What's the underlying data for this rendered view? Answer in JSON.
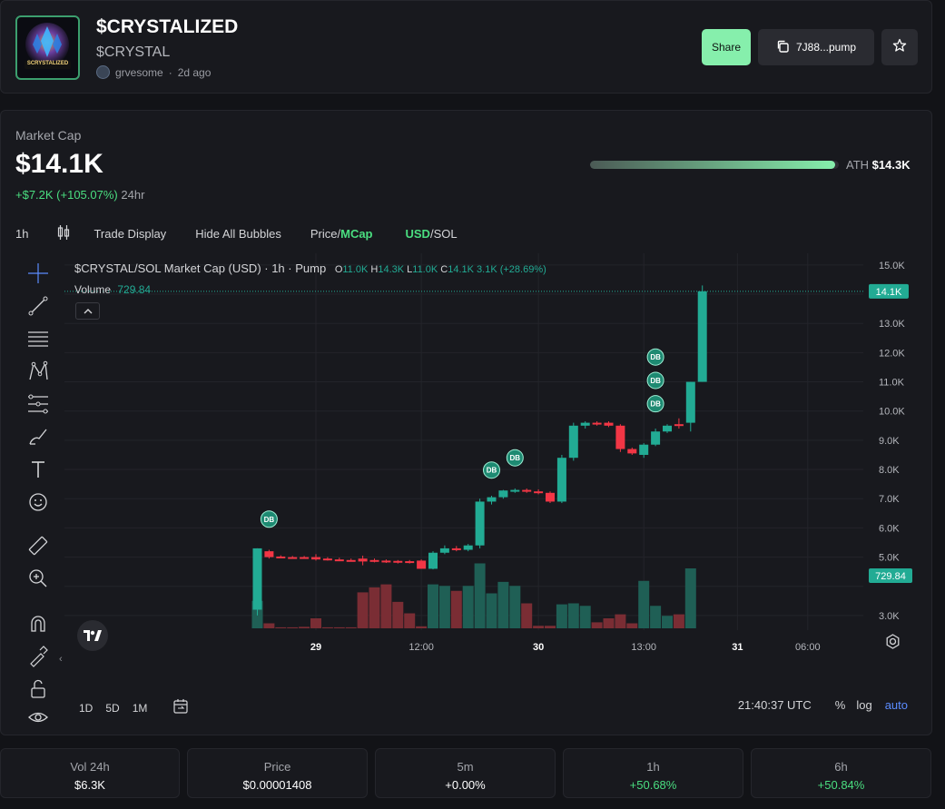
{
  "token": {
    "name": "$CRYSTALIZED",
    "symbol": "$CRYSTAL",
    "creator": "grvesome",
    "age": "2d ago",
    "logo_text": "SCRYSTALIZED"
  },
  "actions": {
    "share_label": "Share",
    "contract_label": "7J88...pump",
    "copy_icon": "copy-icon",
    "star_icon": "star-icon"
  },
  "market": {
    "label": "Market Cap",
    "value": "$14.1K",
    "change": "+$7.2K (+105.07%)",
    "period": "24hr",
    "ath_label": "ATH",
    "ath_value": "$14.3K",
    "ath_progress": 0.986
  },
  "toolbar": {
    "interval": "1h",
    "trade_display": "Trade Display",
    "hide_bubbles": "Hide All Bubbles",
    "price_label": "Price",
    "mcap_label": "MCap",
    "usd_label": "USD",
    "sol_label": "SOL",
    "slash": "/"
  },
  "chart_header": {
    "title": "$CRYSTAL/SOL Market Cap (USD) · 1h · Pump",
    "o_label": "O",
    "o_value": "11.0K",
    "h_label": "H",
    "h_value": "14.3K",
    "l_label": "L",
    "l_value": "11.0K",
    "c_label": "C",
    "c_value": "14.1K",
    "change": "3.1K (+28.69%)",
    "volume_label": "Volume",
    "volume_value": "729.84",
    "last_price_tag": "14.1K",
    "volume_tag": "729.84",
    "bubble_label": "DB"
  },
  "bottombar": {
    "ranges": [
      "1D",
      "5D",
      "1M"
    ],
    "time": "21:40:37 UTC",
    "percent": "%",
    "log": "log",
    "auto": "auto"
  },
  "stats": [
    {
      "label": "Vol 24h",
      "value": "$6.3K"
    },
    {
      "label": "Price",
      "value": "$0.00001408"
    },
    {
      "label": "5m",
      "value": "+0.00%"
    },
    {
      "label": "1h",
      "value": "+50.68%"
    },
    {
      "label": "6h",
      "value": "+50.84%"
    }
  ],
  "chart_data": {
    "type": "candlestick",
    "ylabel": "",
    "y_ticks": [
      3.0,
      4.0,
      5.0,
      6.0,
      7.0,
      8.0,
      9.0,
      10.0,
      11.0,
      12.0,
      13.0,
      14.0,
      15.0
    ],
    "y_tick_labels": [
      "3.0K",
      "",
      "5.0K",
      "6.0K",
      "7.0K",
      "8.0K",
      "9.0K",
      "10.0K",
      "11.0K",
      "12.0K",
      "13.0K",
      "",
      "15.0K"
    ],
    "ylim": [
      2.5,
      15.4
    ],
    "x_labels": [
      {
        "i": 5,
        "label": "29"
      },
      {
        "i": 14,
        "label": "12:00"
      },
      {
        "i": 24,
        "label": "30"
      },
      {
        "i": 33,
        "label": "13:00"
      },
      {
        "i": 41,
        "label": "31"
      },
      {
        "i": 47,
        "label": "06:00"
      }
    ],
    "candles": [
      {
        "o": 3.2,
        "h": 5.3,
        "l": 3.0,
        "c": 5.3,
        "v": 0.55
      },
      {
        "o": 5.2,
        "h": 5.25,
        "l": 4.95,
        "c": 5.0,
        "v": 0.1
      },
      {
        "o": 5.02,
        "h": 5.06,
        "l": 4.98,
        "c": 5.0,
        "v": 0.02
      },
      {
        "o": 5.0,
        "h": 5.04,
        "l": 4.95,
        "c": 4.98,
        "v": 0.02
      },
      {
        "o": 5.0,
        "h": 5.04,
        "l": 4.94,
        "c": 4.97,
        "v": 0.03
      },
      {
        "o": 5.0,
        "h": 5.1,
        "l": 4.88,
        "c": 4.92,
        "v": 0.2
      },
      {
        "o": 4.95,
        "h": 5.0,
        "l": 4.88,
        "c": 4.9,
        "v": 0.02
      },
      {
        "o": 4.92,
        "h": 4.98,
        "l": 4.86,
        "c": 4.88,
        "v": 0.02
      },
      {
        "o": 4.9,
        "h": 4.95,
        "l": 4.85,
        "c": 4.87,
        "v": 0.02
      },
      {
        "o": 4.95,
        "h": 5.05,
        "l": 4.72,
        "c": 4.85,
        "v": 0.72
      },
      {
        "o": 4.9,
        "h": 4.95,
        "l": 4.82,
        "c": 4.85,
        "v": 0.82
      },
      {
        "o": 4.88,
        "h": 4.92,
        "l": 4.8,
        "c": 4.83,
        "v": 0.88
      },
      {
        "o": 4.87,
        "h": 4.9,
        "l": 4.78,
        "c": 4.82,
        "v": 0.53
      },
      {
        "o": 4.86,
        "h": 4.9,
        "l": 4.78,
        "c": 4.8,
        "v": 0.3
      },
      {
        "o": 4.88,
        "h": 4.92,
        "l": 4.6,
        "c": 4.6,
        "v": 0.04
      },
      {
        "o": 4.6,
        "h": 5.2,
        "l": 4.58,
        "c": 5.15,
        "v": 0.88
      },
      {
        "o": 5.15,
        "h": 5.4,
        "l": 5.1,
        "c": 5.3,
        "v": 0.85
      },
      {
        "o": 5.3,
        "h": 5.38,
        "l": 5.2,
        "c": 5.25,
        "v": 0.75
      },
      {
        "o": 5.25,
        "h": 5.45,
        "l": 5.2,
        "c": 5.4,
        "v": 0.85
      },
      {
        "o": 5.4,
        "h": 7.0,
        "l": 5.3,
        "c": 6.9,
        "v": 1.3
      },
      {
        "o": 6.9,
        "h": 7.1,
        "l": 6.8,
        "c": 7.05,
        "v": 0.7
      },
      {
        "o": 7.05,
        "h": 7.3,
        "l": 7.0,
        "c": 7.28,
        "v": 0.93
      },
      {
        "o": 7.28,
        "h": 7.35,
        "l": 7.2,
        "c": 7.3,
        "v": 0.85
      },
      {
        "o": 7.3,
        "h": 7.35,
        "l": 7.2,
        "c": 7.25,
        "v": 0.5
      },
      {
        "o": 7.25,
        "h": 7.32,
        "l": 7.15,
        "c": 7.2,
        "v": 0.05
      },
      {
        "o": 7.2,
        "h": 7.25,
        "l": 6.85,
        "c": 6.9,
        "v": 0.05
      },
      {
        "o": 6.9,
        "h": 8.5,
        "l": 6.85,
        "c": 8.4,
        "v": 0.48
      },
      {
        "o": 8.4,
        "h": 9.6,
        "l": 8.3,
        "c": 9.5,
        "v": 0.5
      },
      {
        "o": 9.5,
        "h": 9.65,
        "l": 9.4,
        "c": 9.6,
        "v": 0.45
      },
      {
        "o": 9.6,
        "h": 9.65,
        "l": 9.5,
        "c": 9.55,
        "v": 0.12
      },
      {
        "o": 9.6,
        "h": 9.65,
        "l": 9.45,
        "c": 9.5,
        "v": 0.2
      },
      {
        "o": 9.5,
        "h": 9.55,
        "l": 8.6,
        "c": 8.7,
        "v": 0.28
      },
      {
        "o": 8.7,
        "h": 8.75,
        "l": 8.5,
        "c": 8.55,
        "v": 0.1
      },
      {
        "o": 8.5,
        "h": 8.9,
        "l": 8.4,
        "c": 8.85,
        "v": 0.95
      },
      {
        "o": 8.85,
        "h": 9.4,
        "l": 8.8,
        "c": 9.3,
        "v": 0.45
      },
      {
        "o": 9.3,
        "h": 9.55,
        "l": 9.25,
        "c": 9.5,
        "v": 0.25
      },
      {
        "o": 9.55,
        "h": 9.75,
        "l": 9.4,
        "c": 9.5,
        "v": 0.28
      },
      {
        "o": 9.6,
        "h": 11.0,
        "l": 9.3,
        "c": 11.0,
        "v": 1.2
      },
      {
        "o": 11.0,
        "h": 14.3,
        "l": 11.0,
        "c": 14.1,
        "v": 0.0
      }
    ],
    "last_price": 14.1,
    "bubbles": [
      {
        "i": 1,
        "y": 6.3
      },
      {
        "i": 20,
        "y": 7.98
      },
      {
        "i": 22,
        "y": 8.4
      },
      {
        "i": 34,
        "y": 10.25
      },
      {
        "i": 34,
        "y": 11.05
      },
      {
        "i": 34,
        "y": 11.85
      }
    ],
    "up_color": "#22ab94",
    "down_color": "#f23645",
    "grid": true
  }
}
